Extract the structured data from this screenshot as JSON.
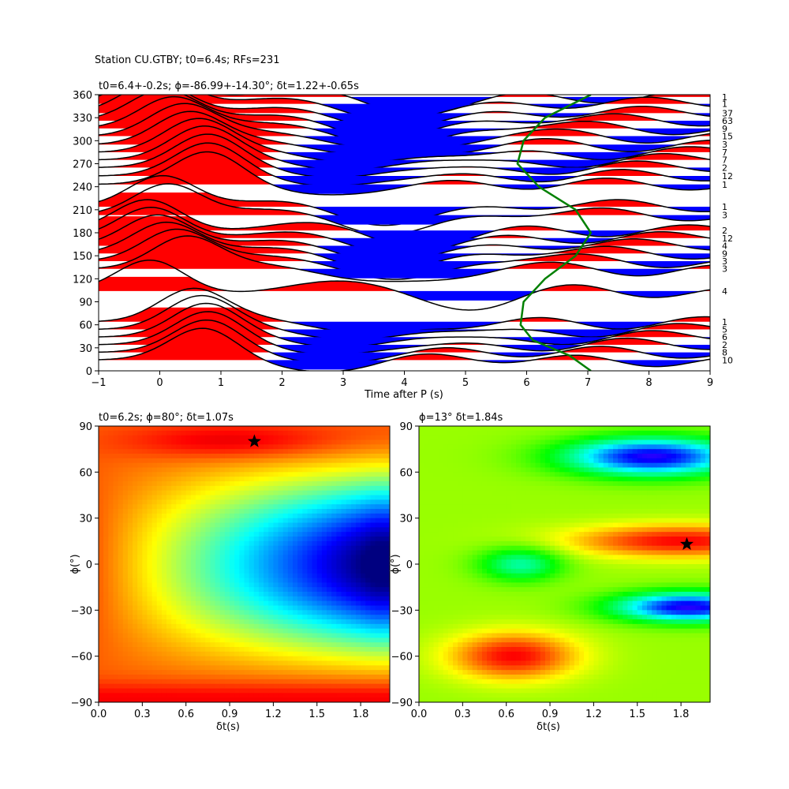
{
  "suptitle": "Station CU.GTBY; t0=6.4s; RFs=231",
  "top_panel": {
    "title": "t0=6.4+-0.2s; ϕ=-86.99+-14.30°; δt=1.22+-0.65s",
    "xlabel": "Time after P (s)",
    "x_ticks": [
      "−1",
      "0",
      "1",
      "2",
      "3",
      "4",
      "5",
      "6",
      "7",
      "8",
      "9"
    ],
    "y_ticks": [
      "0",
      "30",
      "60",
      "90",
      "120",
      "150",
      "180",
      "210",
      "240",
      "270",
      "300",
      "330",
      "360"
    ],
    "trace_counts": [
      {
        "baz": 357,
        "n": "1"
      },
      {
        "baz": 348,
        "n": "1"
      },
      {
        "baz": 336,
        "n": "37"
      },
      {
        "baz": 326,
        "n": "63"
      },
      {
        "baz": 316,
        "n": "9"
      },
      {
        "baz": 306,
        "n": "15"
      },
      {
        "baz": 295,
        "n": "3"
      },
      {
        "baz": 285,
        "n": "7"
      },
      {
        "baz": 275,
        "n": "7"
      },
      {
        "baz": 265,
        "n": "2"
      },
      {
        "baz": 254,
        "n": "12"
      },
      {
        "baz": 243,
        "n": "1"
      },
      {
        "baz": 214,
        "n": "1"
      },
      {
        "baz": 203,
        "n": "3"
      },
      {
        "baz": 183,
        "n": "2"
      },
      {
        "baz": 173,
        "n": "12"
      },
      {
        "baz": 163,
        "n": "4"
      },
      {
        "baz": 153,
        "n": "9"
      },
      {
        "baz": 143,
        "n": "3"
      },
      {
        "baz": 133,
        "n": "3"
      },
      {
        "baz": 104,
        "n": "4"
      },
      {
        "baz": 64,
        "n": "1"
      },
      {
        "baz": 54,
        "n": "5"
      },
      {
        "baz": 44,
        "n": "6"
      },
      {
        "baz": 34,
        "n": "2"
      },
      {
        "baz": 24,
        "n": "8"
      },
      {
        "baz": 14,
        "n": "10"
      }
    ],
    "positive_color": "#ff0000",
    "negative_color": "#0000ff",
    "curve_color": "#008000"
  },
  "left_panel": {
    "title": "t0=6.2s; ϕ=80°; δt=1.07s",
    "xlabel": "δt(s)",
    "ylabel": "ϕ(°)",
    "x_ticks": [
      "0.0",
      "0.3",
      "0.6",
      "0.9",
      "1.2",
      "1.5",
      "1.8"
    ],
    "y_ticks": [
      "−90",
      "−60",
      "−30",
      "0",
      "30",
      "60",
      "90"
    ]
  },
  "right_panel": {
    "title": "ϕ=13° δt=1.84s",
    "xlabel": "δt(s)",
    "ylabel": "ϕ(°)",
    "x_ticks": [
      "0.0",
      "0.3",
      "0.6",
      "0.9",
      "1.2",
      "1.5",
      "1.8"
    ],
    "y_ticks": [
      "−90",
      "−60",
      "−30",
      "0",
      "30",
      "60",
      "90"
    ]
  },
  "chart_data": [
    {
      "type": "line",
      "description_label": "receiver functions by back-azimuth",
      "xlim": [
        -1,
        9
      ],
      "ylim": [
        0,
        360
      ],
      "series": [
        {
          "type": "area",
          "baz": [
            357,
            348,
            336,
            326,
            316,
            306,
            295,
            285,
            275,
            265,
            254,
            243,
            214,
            203,
            183,
            173,
            163,
            153,
            143,
            133,
            104,
            64,
            54,
            44,
            34,
            24,
            14
          ]
        },
        {
          "type": "line",
          "x": [
            7.05,
            6.3,
            5.95,
            5.85,
            6.2,
            6.8,
            7.05,
            6.8,
            6.3,
            5.95,
            5.9,
            6.1,
            6.7,
            7.05
          ],
          "y": [
            360,
            330,
            300,
            270,
            240,
            210,
            180,
            150,
            120,
            90,
            60,
            40,
            20,
            0
          ]
        }
      ]
    },
    {
      "type": "heatmap",
      "xlim": [
        0,
        2.0
      ],
      "ylim": [
        -90,
        90
      ],
      "best": {
        "x": 1.07,
        "y": 80
      },
      "colormap": "jet"
    },
    {
      "type": "heatmap",
      "xlim": [
        0,
        2.0
      ],
      "ylim": [
        -90,
        90
      ],
      "best": {
        "x": 1.84,
        "y": 13
      },
      "colormap": "hsv"
    }
  ]
}
